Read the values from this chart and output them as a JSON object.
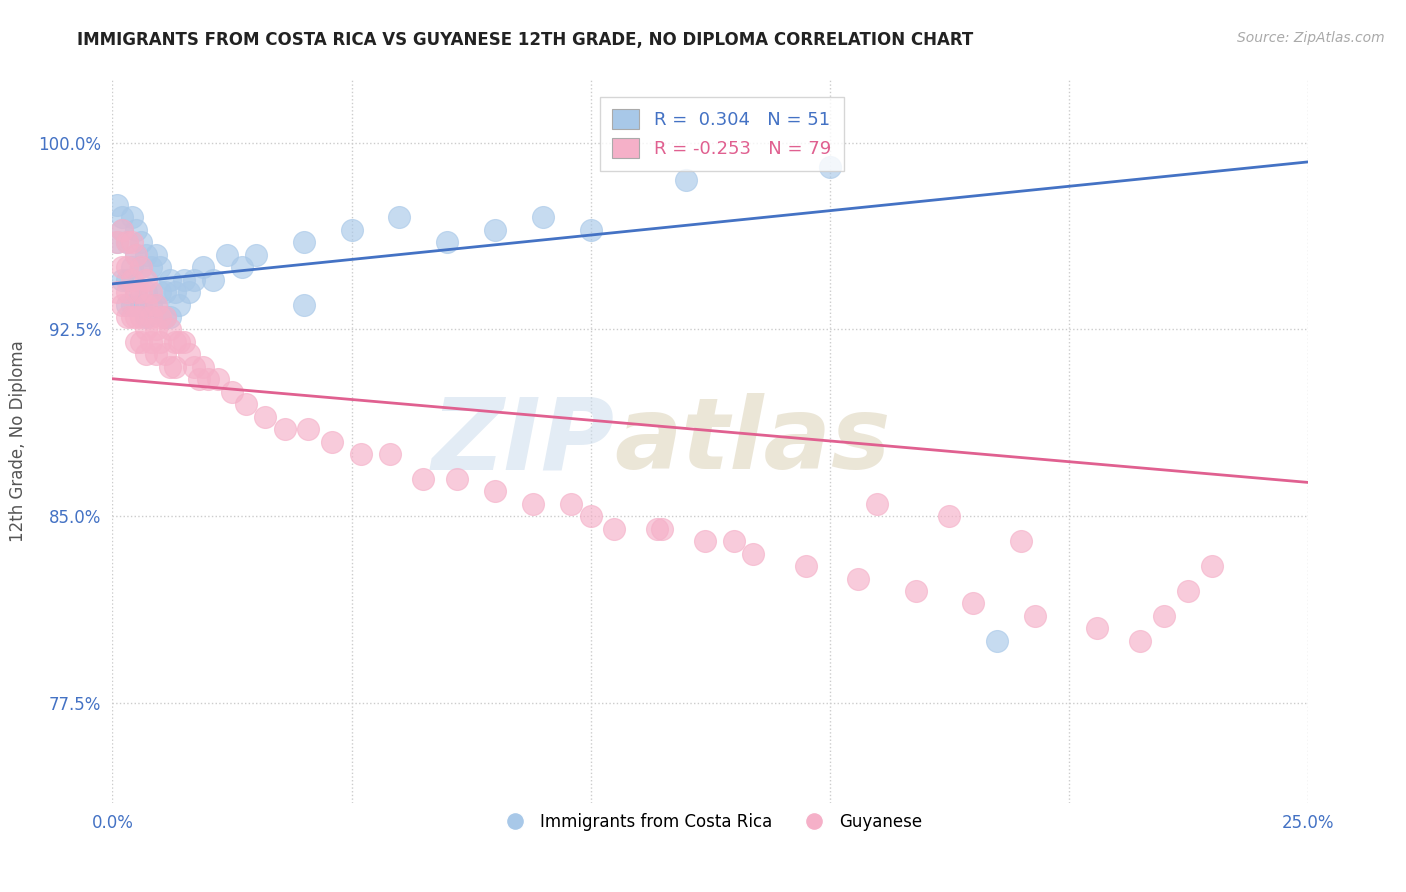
{
  "title": "IMMIGRANTS FROM COSTA RICA VS GUYANESE 12TH GRADE, NO DIPLOMA CORRELATION CHART",
  "source": "Source: ZipAtlas.com",
  "ylabel": "12th Grade, No Diploma",
  "xlim": [
    0.0,
    0.25
  ],
  "ylim": [
    0.735,
    1.025
  ],
  "blue_R": 0.304,
  "blue_N": 51,
  "pink_R": -0.253,
  "pink_N": 79,
  "blue_dot_color": "#a8c8e8",
  "pink_dot_color": "#f5b0c8",
  "blue_line_color": "#4472c4",
  "pink_line_color": "#e06090",
  "legend_label_blue": "Immigrants from Costa Rica",
  "legend_label_pink": "Guyanese",
  "watermark_zip": "ZIP",
  "watermark_atlas": "atlas",
  "background_color": "#ffffff",
  "grid_color": "#cccccc",
  "blue_scatter_x": [
    0.001,
    0.001,
    0.002,
    0.002,
    0.002,
    0.003,
    0.003,
    0.003,
    0.004,
    0.004,
    0.004,
    0.005,
    0.005,
    0.005,
    0.006,
    0.006,
    0.006,
    0.007,
    0.007,
    0.007,
    0.008,
    0.008,
    0.009,
    0.009,
    0.01,
    0.01,
    0.011,
    0.011,
    0.012,
    0.012,
    0.013,
    0.014,
    0.015,
    0.016,
    0.017,
    0.019,
    0.021,
    0.024,
    0.027,
    0.03,
    0.04,
    0.05,
    0.06,
    0.07,
    0.08,
    0.09,
    0.1,
    0.12,
    0.15,
    0.185,
    0.04
  ],
  "blue_scatter_y": [
    0.975,
    0.96,
    0.97,
    0.945,
    0.965,
    0.96,
    0.945,
    0.935,
    0.97,
    0.95,
    0.935,
    0.965,
    0.955,
    0.94,
    0.96,
    0.95,
    0.935,
    0.955,
    0.94,
    0.93,
    0.95,
    0.935,
    0.955,
    0.935,
    0.95,
    0.94,
    0.94,
    0.93,
    0.945,
    0.93,
    0.94,
    0.935,
    0.945,
    0.94,
    0.945,
    0.95,
    0.945,
    0.955,
    0.95,
    0.955,
    0.96,
    0.965,
    0.97,
    0.96,
    0.965,
    0.97,
    0.965,
    0.985,
    0.99,
    0.8,
    0.935
  ],
  "pink_scatter_x": [
    0.001,
    0.001,
    0.002,
    0.002,
    0.002,
    0.003,
    0.003,
    0.003,
    0.003,
    0.004,
    0.004,
    0.004,
    0.005,
    0.005,
    0.005,
    0.005,
    0.006,
    0.006,
    0.006,
    0.006,
    0.007,
    0.007,
    0.007,
    0.007,
    0.008,
    0.008,
    0.008,
    0.009,
    0.009,
    0.009,
    0.01,
    0.01,
    0.011,
    0.011,
    0.012,
    0.012,
    0.013,
    0.013,
    0.014,
    0.015,
    0.016,
    0.017,
    0.018,
    0.019,
    0.02,
    0.022,
    0.025,
    0.028,
    0.032,
    0.036,
    0.041,
    0.046,
    0.052,
    0.058,
    0.065,
    0.072,
    0.08,
    0.088,
    0.096,
    0.105,
    0.114,
    0.124,
    0.134,
    0.145,
    0.156,
    0.168,
    0.18,
    0.193,
    0.206,
    0.19,
    0.175,
    0.16,
    0.215,
    0.22,
    0.225,
    0.23,
    0.1,
    0.115,
    0.13
  ],
  "pink_scatter_y": [
    0.96,
    0.94,
    0.965,
    0.95,
    0.935,
    0.96,
    0.95,
    0.94,
    0.93,
    0.96,
    0.945,
    0.93,
    0.955,
    0.94,
    0.93,
    0.92,
    0.95,
    0.94,
    0.93,
    0.92,
    0.945,
    0.935,
    0.925,
    0.915,
    0.94,
    0.93,
    0.92,
    0.935,
    0.925,
    0.915,
    0.93,
    0.92,
    0.93,
    0.915,
    0.925,
    0.91,
    0.92,
    0.91,
    0.92,
    0.92,
    0.915,
    0.91,
    0.905,
    0.91,
    0.905,
    0.905,
    0.9,
    0.895,
    0.89,
    0.885,
    0.885,
    0.88,
    0.875,
    0.875,
    0.865,
    0.865,
    0.86,
    0.855,
    0.855,
    0.845,
    0.845,
    0.84,
    0.835,
    0.83,
    0.825,
    0.82,
    0.815,
    0.81,
    0.805,
    0.84,
    0.85,
    0.855,
    0.8,
    0.81,
    0.82,
    0.83,
    0.85,
    0.845,
    0.84
  ]
}
